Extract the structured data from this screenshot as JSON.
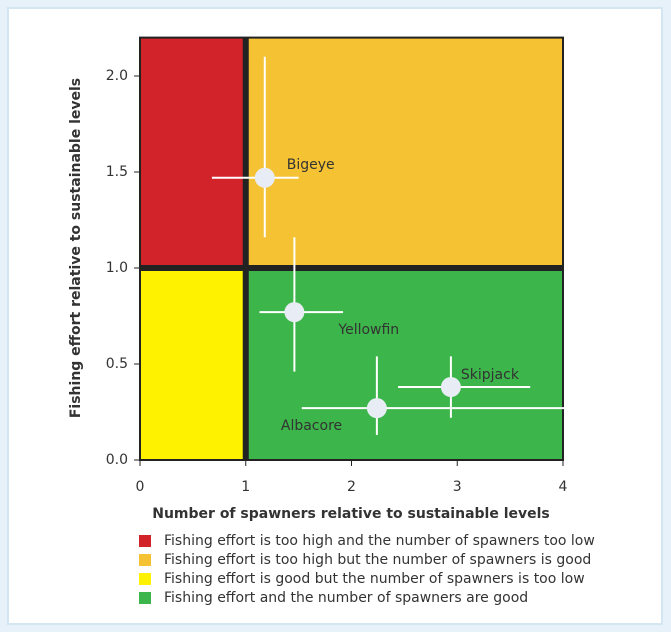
{
  "chart_data": {
    "type": "scatter",
    "xlabel": "Number of spawners relative to sustainable levels",
    "ylabel": "Fishing effort relative to sustainable levels",
    "xlim": [
      0,
      4
    ],
    "ylim": [
      0,
      2.2
    ],
    "xticks": [
      0,
      1,
      2,
      3,
      4
    ],
    "yticks": [
      {
        "value": 0,
        "label": "0.0"
      },
      0.5,
      {
        "value": 1,
        "label": "1.0"
      },
      1.5,
      {
        "value": 2,
        "label": "2.0"
      }
    ],
    "xref": 1,
    "yref": 1,
    "regions": [
      {
        "label": "Fishing effort is too high and the number of spawners too low",
        "color": "#d2232a",
        "quadrant": "upper-left"
      },
      {
        "label": "Fishing effort is too high but the number of spawners is good",
        "color": "#f4c232",
        "quadrant": "upper-right"
      },
      {
        "label": "Fishing effort is good but the number of spawners is too low",
        "color": "#fff200",
        "quadrant": "lower-left"
      },
      {
        "label": "Fishing effort and the number of spawners are good",
        "color": "#3cb54a",
        "quadrant": "lower-right"
      }
    ],
    "point_labels": [
      "Bigeye",
      "Yellowfin",
      "Skipjack",
      "Albacore"
    ],
    "x": [
      1.18,
      1.46,
      2.94,
      2.24
    ],
    "y": [
      1.47,
      0.77,
      0.38,
      0.27
    ],
    "x_low": [
      0.68,
      1.13,
      2.44,
      1.53
    ],
    "x_high": [
      1.5,
      1.92,
      3.69,
      4.13
    ],
    "y_low": [
      1.16,
      0.46,
      0.22,
      0.13
    ],
    "y_high": [
      2.1,
      1.16,
      0.54,
      0.54
    ],
    "point_color": "#e8ecf5",
    "error_color": "#ffffff"
  }
}
